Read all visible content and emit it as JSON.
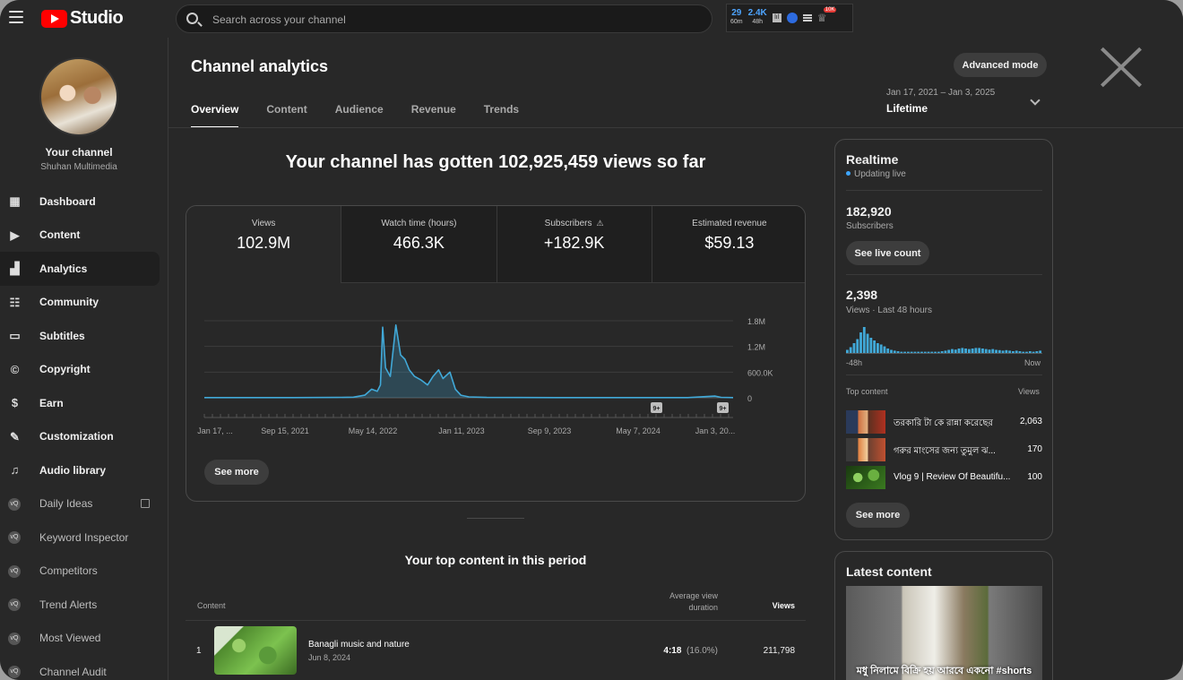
{
  "topbar": {
    "logo_text": "Studio",
    "search_placeholder": "Search across your channel",
    "ext": {
      "stat1_value": "29",
      "stat1_label": "60m",
      "stat2_value": "2.4K",
      "stat2_label": "48h",
      "badge": "10K"
    }
  },
  "sidebar": {
    "your_channel": "Your channel",
    "channel_name": "Shuhan Multimedia",
    "items": [
      {
        "label": "Dashboard",
        "icon": "dashboard-icon"
      },
      {
        "label": "Content",
        "icon": "content-icon"
      },
      {
        "label": "Analytics",
        "icon": "analytics-icon"
      },
      {
        "label": "Community",
        "icon": "community-icon"
      },
      {
        "label": "Subtitles",
        "icon": "subtitles-icon"
      },
      {
        "label": "Copyright",
        "icon": "copyright-icon"
      },
      {
        "label": "Earn",
        "icon": "earn-icon"
      },
      {
        "label": "Customization",
        "icon": "customization-icon"
      },
      {
        "label": "Audio library",
        "icon": "audio-library-icon"
      },
      {
        "label": "Daily Ideas",
        "icon": "vidiq-icon"
      },
      {
        "label": "Keyword Inspector",
        "icon": "vidiq-icon"
      },
      {
        "label": "Competitors",
        "icon": "vidiq-icon"
      },
      {
        "label": "Trend Alerts",
        "icon": "vidiq-icon"
      },
      {
        "label": "Most Viewed",
        "icon": "vidiq-icon"
      },
      {
        "label": "Channel Audit",
        "icon": "vidiq-icon"
      }
    ]
  },
  "main": {
    "title": "Channel analytics",
    "advanced_mode": "Advanced mode",
    "tabs": [
      "Overview",
      "Content",
      "Audience",
      "Revenue",
      "Trends"
    ],
    "date_range": "Jan 17, 2021 – Jan 3, 2025",
    "period": "Lifetime",
    "headline": "Your channel has gotten 102,925,459 views so far",
    "metrics": [
      {
        "label": "Views",
        "value": "102.9M"
      },
      {
        "label": "Watch time (hours)",
        "value": "466.3K"
      },
      {
        "label": "Subscribers",
        "value": "+182.9K"
      },
      {
        "label": "Estimated revenue",
        "value": "$59.13"
      }
    ],
    "see_more": "See more",
    "top_content": {
      "title": "Your top content in this period",
      "col_content": "Content",
      "col_avd": "Average view duration",
      "col_views": "Views",
      "rows": [
        {
          "rank": "1",
          "title": "Banagli music and nature",
          "date": "Jun 8, 2024",
          "avd": "4:18",
          "avd_pct": "(16.0%)",
          "views": "211,798"
        }
      ]
    }
  },
  "chart_data": {
    "type": "area",
    "series": [
      {
        "name": "Views",
        "color": "#41a9d8"
      }
    ],
    "x_tick_labels": [
      "Jan 17, ...",
      "Sep 15, 2021",
      "May 14, 2022",
      "Jan 11, 2023",
      "Sep 9, 2023",
      "May 7, 2024",
      "Jan 3, 20..."
    ],
    "y_tick_labels": [
      "0",
      "600.0K",
      "1.2M",
      "1.8M"
    ],
    "ylim": [
      0,
      1800000
    ],
    "markers": [
      "9+",
      "9+"
    ],
    "points": [
      [
        "2021-01-17",
        5000
      ],
      [
        "2021-09-15",
        5000
      ],
      [
        "2022-01-15",
        8000
      ],
      [
        "2022-03-01",
        15000
      ],
      [
        "2022-04-01",
        60000
      ],
      [
        "2022-04-20",
        200000
      ],
      [
        "2022-05-05",
        150000
      ],
      [
        "2022-05-14",
        300000
      ],
      [
        "2022-05-20",
        1650000
      ],
      [
        "2022-05-28",
        700000
      ],
      [
        "2022-06-10",
        500000
      ],
      [
        "2022-06-25",
        1700000
      ],
      [
        "2022-07-08",
        1000000
      ],
      [
        "2022-07-20",
        900000
      ],
      [
        "2022-08-01",
        650000
      ],
      [
        "2022-08-15",
        500000
      ],
      [
        "2022-09-01",
        420000
      ],
      [
        "2022-09-20",
        300000
      ],
      [
        "2022-10-05",
        500000
      ],
      [
        "2022-10-20",
        650000
      ],
      [
        "2022-11-01",
        450000
      ],
      [
        "2022-11-20",
        600000
      ],
      [
        "2022-12-05",
        200000
      ],
      [
        "2022-12-20",
        60000
      ],
      [
        "2023-01-11",
        20000
      ],
      [
        "2023-03-01",
        8000
      ],
      [
        "2023-06-01",
        6000
      ],
      [
        "2023-09-09",
        5000
      ],
      [
        "2024-01-01",
        5000
      ],
      [
        "2024-05-07",
        5000
      ],
      [
        "2024-09-01",
        5000
      ],
      [
        "2024-11-15",
        40000
      ],
      [
        "2024-12-01",
        10000
      ],
      [
        "2025-01-03",
        5000
      ]
    ]
  },
  "realtime": {
    "title": "Realtime",
    "status": "Updating live",
    "subscribers_value": "182,920",
    "subscribers_label": "Subscribers",
    "live_count_button": "See live count",
    "views_value": "2,398",
    "views_label": "Views · Last 48 hours",
    "axis_left": "-48h",
    "axis_right": "Now",
    "top_content_label": "Top content",
    "views_col_label": "Views",
    "spark_values": [
      15,
      25,
      40,
      55,
      80,
      100,
      75,
      60,
      50,
      40,
      35,
      28,
      20,
      15,
      12,
      10,
      8,
      8,
      8,
      8,
      8,
      8,
      8,
      8,
      8,
      8,
      8,
      8,
      10,
      12,
      15,
      18,
      16,
      20,
      22,
      20,
      18,
      20,
      22,
      22,
      20,
      18,
      16,
      18,
      15,
      14,
      12,
      14,
      12,
      10,
      12,
      10,
      8,
      8,
      10,
      8,
      10,
      12
    ],
    "items": [
      {
        "title": "তরকারি টা কে রান্না করেছের",
        "views": "2,063"
      },
      {
        "title": "গরুর মাংসের জন্য তুমুল ঝ...",
        "views": "170"
      },
      {
        "title": "Vlog 9 | Review Of Beautifu...",
        "views": "100"
      }
    ],
    "see_more": "See more"
  },
  "latest": {
    "title": "Latest content",
    "caption": "মধু নিলামে বিক্রি হয় আরবে একনো #shorts"
  }
}
